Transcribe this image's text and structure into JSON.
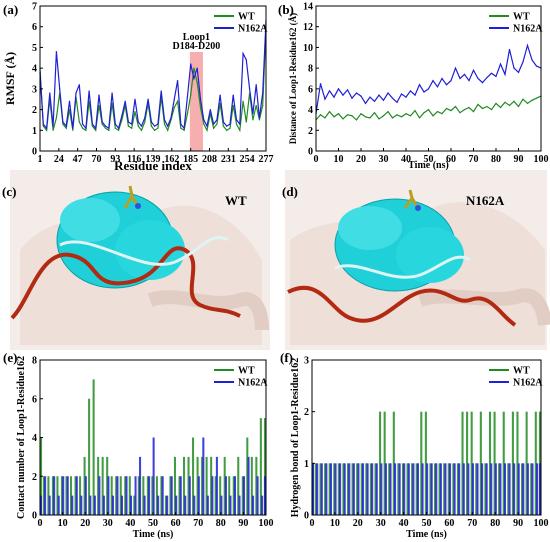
{
  "colors": {
    "wt": "#228b22",
    "mut": "#1f1fd6",
    "loop_highlight": "#f4a0a0",
    "loop_text": "#000000"
  },
  "panels": {
    "c": {
      "label": "(c)",
      "title": "WT"
    },
    "d": {
      "label": "(d)",
      "title": "N162A"
    }
  },
  "chart_data": [
    {
      "id": "a",
      "panel_label": "(a)",
      "type": "line",
      "xlabel": "Residue index",
      "ylabel": "RMSF (Å)",
      "xlim": [
        1,
        277
      ],
      "ylim": [
        0,
        7
      ],
      "xticks": [
        1,
        24,
        47,
        70,
        93,
        116,
        139,
        162,
        185,
        208,
        231,
        254,
        277
      ],
      "yticks": [
        0,
        1,
        2,
        3,
        4,
        5,
        6,
        7
      ],
      "legend": [
        "WT",
        "N162A"
      ],
      "legend_position": "top-right",
      "annotation": {
        "line1": "Loop1",
        "line2": "D184-D200",
        "x_range": [
          184,
          200
        ]
      },
      "series": [
        {
          "name": "WT",
          "color_key": "wt",
          "x": [
            1,
            5,
            9,
            13,
            17,
            21,
            25,
            29,
            33,
            37,
            41,
            45,
            49,
            53,
            57,
            61,
            65,
            69,
            73,
            77,
            81,
            85,
            89,
            93,
            97,
            101,
            105,
            109,
            113,
            117,
            121,
            125,
            129,
            133,
            137,
            141,
            145,
            149,
            153,
            157,
            161,
            165,
            169,
            173,
            177,
            181,
            185,
            189,
            193,
            197,
            201,
            205,
            209,
            213,
            217,
            221,
            225,
            229,
            233,
            237,
            241,
            245,
            249,
            253,
            257,
            261,
            265,
            269,
            273,
            277
          ],
          "values": [
            4.0,
            1.2,
            1.0,
            2.5,
            1.0,
            1.6,
            2.8,
            1.3,
            1.1,
            2.0,
            1.0,
            2.6,
            1.4,
            1.1,
            1.0,
            2.4,
            1.2,
            1.0,
            2.2,
            1.3,
            1.1,
            1.0,
            2.3,
            1.1,
            1.0,
            1.5,
            2.2,
            1.2,
            1.1,
            1.9,
            1.2,
            1.0,
            1.4,
            2.3,
            1.2,
            1.0,
            1.1,
            2.6,
            1.3,
            1.0,
            1.5,
            2.1,
            2.4,
            1.1,
            1.0,
            1.8,
            2.7,
            4.0,
            3.3,
            2.1,
            1.3,
            1.0,
            1.8,
            1.1,
            1.3,
            2.3,
            1.2,
            1.0,
            1.1,
            2.2,
            1.3,
            1.0,
            2.4,
            1.4,
            2.8,
            1.5,
            2.2,
            1.5,
            2.2,
            5.9
          ]
        },
        {
          "name": "N162A",
          "color_key": "mut",
          "x": [
            1,
            5,
            9,
            13,
            17,
            21,
            25,
            29,
            33,
            37,
            41,
            45,
            49,
            53,
            57,
            61,
            65,
            69,
            73,
            77,
            81,
            85,
            89,
            93,
            97,
            101,
            105,
            109,
            113,
            117,
            121,
            125,
            129,
            133,
            137,
            141,
            145,
            149,
            153,
            157,
            161,
            165,
            169,
            173,
            177,
            181,
            185,
            189,
            193,
            197,
            201,
            205,
            209,
            213,
            217,
            221,
            225,
            229,
            233,
            237,
            241,
            245,
            249,
            253,
            257,
            261,
            265,
            269,
            273,
            277
          ],
          "values": [
            3.8,
            1.3,
            1.1,
            2.8,
            1.2,
            4.8,
            3.0,
            1.4,
            1.2,
            2.4,
            1.1,
            2.8,
            3.2,
            1.3,
            1.1,
            2.9,
            1.3,
            1.1,
            2.7,
            1.4,
            1.2,
            1.1,
            2.8,
            1.3,
            1.1,
            1.7,
            2.4,
            1.4,
            1.3,
            2.5,
            1.4,
            1.2,
            1.6,
            2.5,
            1.4,
            1.2,
            1.3,
            2.9,
            1.5,
            1.2,
            1.6,
            2.5,
            3.4,
            1.3,
            1.1,
            2.6,
            4.2,
            3.5,
            4.0,
            2.5,
            1.5,
            1.2,
            2.0,
            1.3,
            1.5,
            2.7,
            1.4,
            1.2,
            1.3,
            2.7,
            1.5,
            1.3,
            4.7,
            4.4,
            3.0,
            1.8,
            3.2,
            1.6,
            2.8,
            6.3
          ]
        }
      ]
    },
    {
      "id": "b",
      "panel_label": "(b)",
      "type": "line",
      "xlabel": "Time (ns)",
      "ylabel": "Distance of Loop1-Residue162 (Å)",
      "xlim": [
        0,
        100
      ],
      "ylim": [
        0,
        14
      ],
      "xticks": [
        0,
        10,
        20,
        30,
        40,
        50,
        60,
        70,
        80,
        90,
        100
      ],
      "yticks": [
        0,
        2,
        4,
        6,
        8,
        10,
        12,
        14
      ],
      "legend": [
        "WT",
        "N162A"
      ],
      "legend_position": "top-right",
      "series": [
        {
          "name": "WT",
          "color_key": "wt",
          "x": [
            0,
            2,
            4,
            6,
            8,
            10,
            12,
            14,
            16,
            18,
            20,
            22,
            24,
            26,
            28,
            30,
            32,
            34,
            36,
            38,
            40,
            42,
            44,
            46,
            48,
            50,
            52,
            54,
            56,
            58,
            60,
            62,
            64,
            66,
            68,
            70,
            72,
            74,
            76,
            78,
            80,
            82,
            84,
            86,
            88,
            90,
            92,
            94,
            96,
            98,
            100
          ],
          "values": [
            3.0,
            3.5,
            3.2,
            3.8,
            3.3,
            3.6,
            3.1,
            3.5,
            3.4,
            3.0,
            3.6,
            3.3,
            3.2,
            3.7,
            3.1,
            3.4,
            3.8,
            3.2,
            3.5,
            3.3,
            3.6,
            3.4,
            3.9,
            3.2,
            3.7,
            4.0,
            3.4,
            3.8,
            3.6,
            4.1,
            3.9,
            4.3,
            3.7,
            4.0,
            4.2,
            3.8,
            4.5,
            4.1,
            4.3,
            4.0,
            4.6,
            4.2,
            4.7,
            4.4,
            4.8,
            4.3,
            5.0,
            4.6,
            4.9,
            5.1,
            5.3
          ]
        },
        {
          "name": "N162A",
          "color_key": "mut",
          "x": [
            0,
            2,
            4,
            6,
            8,
            10,
            12,
            14,
            16,
            18,
            20,
            22,
            24,
            26,
            28,
            30,
            32,
            34,
            36,
            38,
            40,
            42,
            44,
            46,
            48,
            50,
            52,
            54,
            56,
            58,
            60,
            62,
            64,
            66,
            68,
            70,
            72,
            74,
            76,
            78,
            80,
            82,
            84,
            86,
            88,
            90,
            92,
            94,
            96,
            98,
            100
          ],
          "values": [
            3.6,
            6.5,
            5.0,
            5.8,
            5.2,
            6.0,
            5.4,
            5.9,
            5.1,
            5.6,
            5.3,
            4.6,
            5.2,
            4.8,
            5.4,
            4.9,
            5.6,
            5.1,
            4.7,
            5.5,
            5.2,
            5.8,
            5.4,
            6.4,
            5.7,
            6.0,
            6.8,
            6.2,
            7.0,
            6.4,
            6.8,
            8.0,
            7.0,
            7.4,
            6.8,
            7.8,
            7.0,
            6.6,
            7.1,
            7.5,
            7.2,
            8.4,
            7.4,
            9.8,
            8.0,
            7.6,
            8.6,
            10.2,
            8.8,
            8.2,
            8.0
          ]
        }
      ]
    },
    {
      "id": "e",
      "panel_label": "(e)",
      "type": "bar",
      "xlabel": "Time (ns)",
      "ylabel": "Contact number of Loop1-Residue162",
      "xlim": [
        0,
        100
      ],
      "ylim": [
        0,
        8
      ],
      "xticks": [
        0,
        10,
        20,
        30,
        40,
        50,
        60,
        70,
        80,
        90,
        100
      ],
      "yticks": [
        0,
        2,
        4,
        6,
        8
      ],
      "legend": [
        "WT",
        "N162A"
      ],
      "legend_position": "top-right",
      "series": [
        {
          "name": "WT",
          "color_key": "wt",
          "x": [
            0,
            2,
            4,
            6,
            8,
            10,
            12,
            14,
            16,
            18,
            20,
            22,
            24,
            26,
            28,
            30,
            32,
            34,
            36,
            38,
            40,
            42,
            44,
            46,
            48,
            50,
            52,
            54,
            56,
            58,
            60,
            62,
            64,
            66,
            68,
            70,
            72,
            74,
            76,
            78,
            80,
            82,
            84,
            86,
            88,
            90,
            92,
            94,
            96,
            98,
            100
          ],
          "values": [
            4,
            2,
            2,
            2,
            2,
            2,
            2,
            2,
            2,
            2,
            3,
            6,
            7,
            3,
            3,
            3,
            2,
            2,
            2,
            2,
            2,
            1,
            2,
            2,
            2,
            2,
            2,
            2,
            1,
            2,
            3,
            2,
            3,
            3,
            4,
            3,
            3,
            3,
            3,
            2,
            2,
            3,
            2,
            2,
            3,
            2,
            4,
            3,
            3,
            5,
            5
          ]
        },
        {
          "name": "N162A",
          "color_key": "mut",
          "x": [
            0,
            2,
            4,
            6,
            8,
            10,
            12,
            14,
            16,
            18,
            20,
            22,
            24,
            26,
            28,
            30,
            32,
            34,
            36,
            38,
            40,
            42,
            44,
            46,
            48,
            50,
            52,
            54,
            56,
            58,
            60,
            62,
            64,
            66,
            68,
            70,
            72,
            74,
            76,
            78,
            80,
            82,
            84,
            86,
            88,
            90,
            92,
            94,
            96,
            98,
            100
          ],
          "values": [
            1,
            2,
            1,
            2,
            1,
            2,
            2,
            1,
            2,
            1,
            2,
            1,
            1,
            2,
            1,
            2,
            1,
            2,
            1,
            2,
            1,
            2,
            3,
            1,
            2,
            4,
            1,
            2,
            1,
            2,
            1,
            2,
            1,
            2,
            1,
            2,
            4,
            1,
            2,
            3,
            1,
            2,
            1,
            2,
            1,
            2,
            3,
            1,
            2,
            1,
            2
          ]
        }
      ]
    },
    {
      "id": "f",
      "panel_label": "(f)",
      "type": "bar",
      "xlabel": "Time (ns)",
      "ylabel": "Hydrogen bond of Loop1-Residue162",
      "xlim": [
        0,
        100
      ],
      "ylim": [
        0,
        3
      ],
      "xticks": [
        0,
        10,
        20,
        30,
        40,
        50,
        60,
        70,
        80,
        90,
        100
      ],
      "yticks": [
        0,
        1,
        2,
        3
      ],
      "legend": [
        "WT",
        "N162A"
      ],
      "legend_position": "top-right",
      "series": [
        {
          "name": "WT",
          "color_key": "wt",
          "x": [
            0,
            2,
            4,
            6,
            8,
            10,
            12,
            14,
            16,
            18,
            20,
            22,
            24,
            26,
            28,
            30,
            32,
            34,
            36,
            38,
            40,
            42,
            44,
            46,
            48,
            50,
            52,
            54,
            56,
            58,
            60,
            62,
            64,
            66,
            68,
            70,
            72,
            74,
            76,
            78,
            80,
            82,
            84,
            86,
            88,
            90,
            92,
            94,
            96,
            98,
            100
          ],
          "values": [
            1,
            1,
            1,
            1,
            1,
            1,
            1,
            1,
            1,
            1,
            1,
            1,
            1,
            1,
            1,
            2,
            2,
            1,
            2,
            1,
            1,
            1,
            1,
            1,
            2,
            2,
            1,
            1,
            1,
            1,
            1,
            1,
            1,
            2,
            2,
            2,
            1,
            2,
            1,
            2,
            2,
            1,
            2,
            1,
            2,
            2,
            1,
            2,
            1,
            2,
            2
          ]
        },
        {
          "name": "N162A",
          "color_key": "mut",
          "x": [
            0,
            2,
            4,
            6,
            8,
            10,
            12,
            14,
            16,
            18,
            20,
            22,
            24,
            26,
            28,
            30,
            32,
            34,
            36,
            38,
            40,
            42,
            44,
            46,
            48,
            50,
            52,
            54,
            56,
            58,
            60,
            62,
            64,
            66,
            68,
            70,
            72,
            74,
            76,
            78,
            80,
            82,
            84,
            86,
            88,
            90,
            92,
            94,
            96,
            98,
            100
          ],
          "values": [
            1,
            1,
            1,
            1,
            1,
            1,
            1,
            1,
            1,
            1,
            1,
            1,
            1,
            1,
            1,
            1,
            1,
            1,
            1,
            1,
            1,
            1,
            1,
            1,
            1,
            1,
            1,
            1,
            1,
            1,
            1,
            1,
            1,
            1,
            1,
            1,
            1,
            1,
            1,
            1,
            1,
            1,
            1,
            1,
            1,
            1,
            1,
            1,
            1,
            1,
            1
          ]
        }
      ]
    }
  ]
}
